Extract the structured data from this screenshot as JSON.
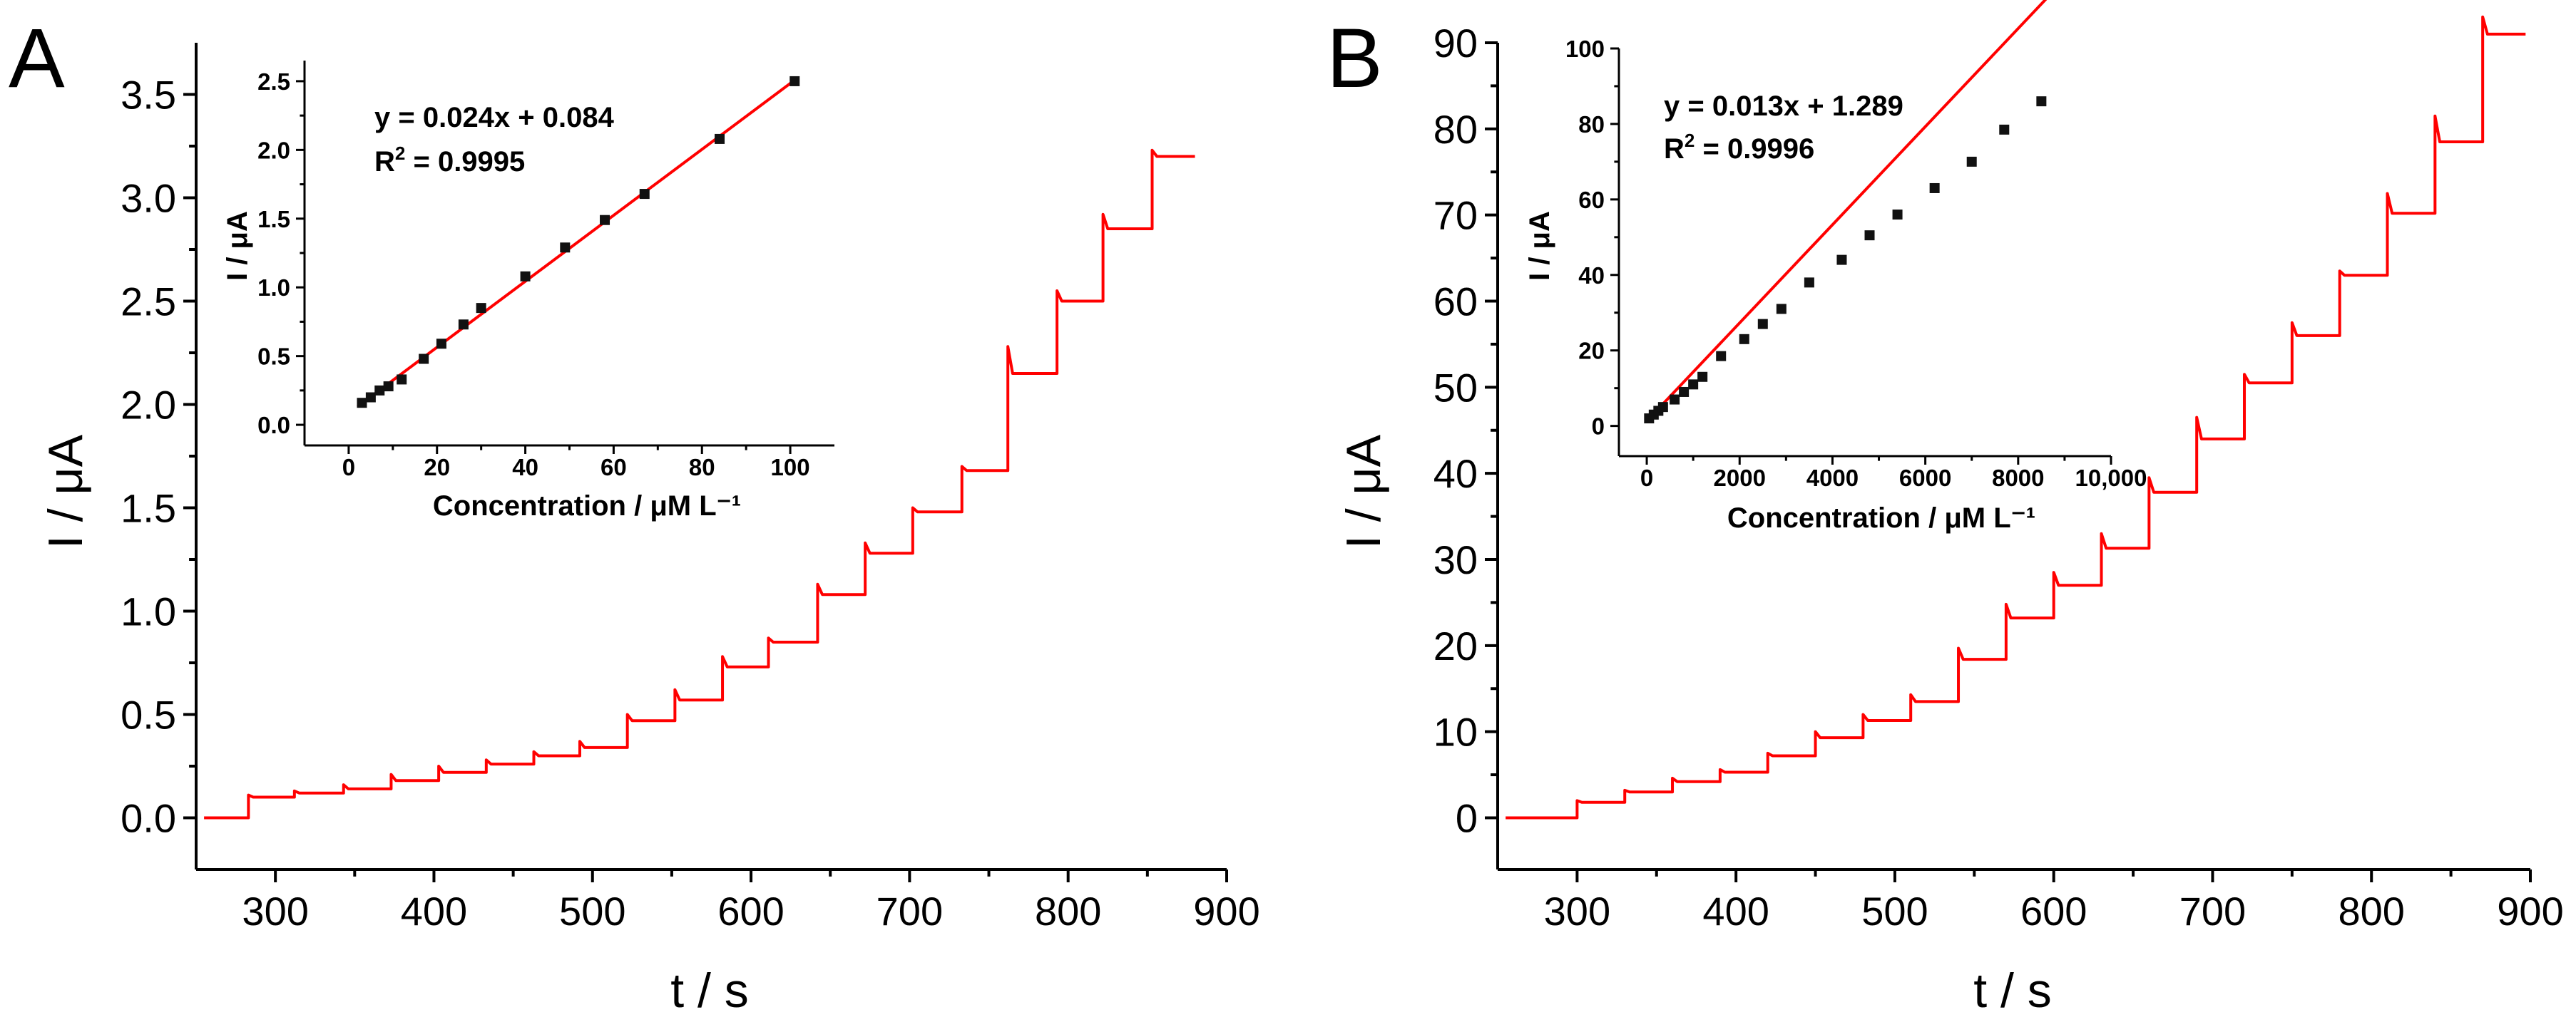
{
  "chart_data": [
    {
      "panel": "A",
      "type": "line",
      "xlabel": "t / s",
      "ylabel": "I / μA",
      "xlim": [
        250,
        900
      ],
      "ylim": [
        -0.25,
        3.75
      ],
      "xticks": [
        300,
        400,
        500,
        600,
        700,
        800,
        900
      ],
      "yticks": [
        0.0,
        0.5,
        1.0,
        1.5,
        2.0,
        2.5,
        3.0,
        3.5
      ],
      "ytick_decimals": 1,
      "color": "#ff0000",
      "steps": [
        {
          "t": 283,
          "level": 0.1,
          "spike": 0.11
        },
        {
          "t": 312,
          "level": 0.12,
          "spike": 0.13
        },
        {
          "t": 343,
          "level": 0.14,
          "spike": 0.16
        },
        {
          "t": 373,
          "level": 0.18,
          "spike": 0.21
        },
        {
          "t": 403,
          "level": 0.22,
          "spike": 0.25
        },
        {
          "t": 433,
          "level": 0.26,
          "spike": 0.28
        },
        {
          "t": 463,
          "level": 0.3,
          "spike": 0.32
        },
        {
          "t": 492,
          "level": 0.34,
          "spike": 0.37
        },
        {
          "t": 522,
          "level": 0.47,
          "spike": 0.5
        },
        {
          "t": 552,
          "level": 0.57,
          "spike": 0.62
        },
        {
          "t": 582,
          "level": 0.73,
          "spike": 0.78
        },
        {
          "t": 611,
          "level": 0.85,
          "spike": 0.87
        },
        {
          "t": 642,
          "level": 1.08,
          "spike": 1.13
        },
        {
          "t": 672,
          "level": 1.28,
          "spike": 1.33
        },
        {
          "t": 702,
          "level": 1.48,
          "spike": 1.5
        },
        {
          "t": 733,
          "level": 1.68,
          "spike": 1.7
        },
        {
          "t": 762,
          "level": 2.15,
          "spike": 2.28
        },
        {
          "t": 793,
          "level": 2.5,
          "spike": 2.55
        },
        {
          "t": 822,
          "level": 2.85,
          "spike": 2.92
        },
        {
          "t": 853,
          "level": 3.2,
          "spike": 3.23
        }
      ],
      "t_start": 255,
      "t_end": 880,
      "inset": {
        "type": "scatter",
        "xlabel": "Concentration / μM L⁻¹",
        "ylabel": "I / μA",
        "xlim": [
          -10,
          110
        ],
        "ylim": [
          -0.15,
          2.65
        ],
        "xticks": [
          0,
          20,
          40,
          60,
          80,
          100
        ],
        "yticks": [
          0.0,
          0.5,
          1.0,
          1.5,
          2.0,
          2.5
        ],
        "ytick_decimals": 1,
        "tick_labels_x": [
          "0",
          "20",
          "40",
          "60",
          "80",
          "100"
        ],
        "points": {
          "x": [
            3,
            5,
            7,
            9,
            12,
            17,
            21,
            26,
            30,
            40,
            49,
            58,
            67,
            84,
            101
          ],
          "y": [
            0.16,
            0.2,
            0.25,
            0.28,
            0.33,
            0.48,
            0.59,
            0.73,
            0.85,
            1.08,
            1.29,
            1.49,
            1.68,
            2.08,
            2.5
          ]
        },
        "fit": {
          "slope": 0.024,
          "intercept": 0.084,
          "x_range": [
            2,
            101
          ]
        },
        "equation": "y = 0.024x + 0.084",
        "r2_prefix": "R",
        "r2_sup": "2",
        "r2_value": " = 0.9995"
      }
    },
    {
      "panel": "B",
      "type": "line",
      "xlabel": "t / s",
      "ylabel": "I / μA",
      "xlim": [
        250,
        900
      ],
      "ylim": [
        -6,
        90
      ],
      "xticks": [
        300,
        400,
        500,
        600,
        700,
        800,
        900
      ],
      "yticks": [
        0,
        10,
        20,
        30,
        40,
        50,
        60,
        70,
        80,
        90
      ],
      "ytick_decimals": 0,
      "color": "#ff0000",
      "steps": [
        {
          "t": 300,
          "level": 1.8,
          "spike": 2.0
        },
        {
          "t": 330,
          "level": 3.0,
          "spike": 3.2
        },
        {
          "t": 360,
          "level": 4.2,
          "spike": 4.6
        },
        {
          "t": 390,
          "level": 5.3,
          "spike": 5.6
        },
        {
          "t": 420,
          "level": 7.2,
          "spike": 7.5
        },
        {
          "t": 450,
          "level": 9.3,
          "spike": 10.0
        },
        {
          "t": 480,
          "level": 11.3,
          "spike": 12.0
        },
        {
          "t": 510,
          "level": 13.5,
          "spike": 14.3
        },
        {
          "t": 540,
          "level": 18.4,
          "spike": 19.7
        },
        {
          "t": 570,
          "level": 23.2,
          "spike": 24.8
        },
        {
          "t": 600,
          "level": 27.0,
          "spike": 28.5
        },
        {
          "t": 630,
          "level": 31.3,
          "spike": 33.0
        },
        {
          "t": 660,
          "level": 37.8,
          "spike": 39.5
        },
        {
          "t": 690,
          "level": 44.0,
          "spike": 46.5
        },
        {
          "t": 720,
          "level": 50.5,
          "spike": 51.5
        },
        {
          "t": 750,
          "level": 56.0,
          "spike": 57.5
        },
        {
          "t": 780,
          "level": 63.0,
          "spike": 63.5
        },
        {
          "t": 810,
          "level": 70.2,
          "spike": 72.5
        },
        {
          "t": 840,
          "level": 78.5,
          "spike": 81.5
        },
        {
          "t": 870,
          "level": 91.0,
          "spike": 93.0
        }
      ],
      "t_start": 255,
      "t_end": 897,
      "inset": {
        "type": "scatter",
        "xlabel": "Concentration / μM L⁻¹",
        "ylabel": "I / μA",
        "xlim": [
          -600,
          10000
        ],
        "ylim": [
          -8,
          100
        ],
        "xticks": [
          0,
          2000,
          4000,
          6000,
          8000,
          10000
        ],
        "yticks": [
          0,
          20,
          40,
          60,
          80,
          100
        ],
        "ytick_decimals": 0,
        "tick_labels_x": [
          "0",
          "2000",
          "4000",
          "6000",
          "8000",
          "10,000"
        ],
        "points": {
          "x": [
            50,
            150,
            250,
            350,
            600,
            800,
            1000,
            1200,
            1600,
            2100,
            2500,
            2900,
            3500,
            4200,
            4800,
            5400,
            6200,
            7000,
            7700,
            8500
          ],
          "y": [
            2,
            3,
            4,
            5,
            7,
            9,
            11,
            13,
            18.5,
            23,
            27,
            31,
            38,
            44,
            50.5,
            56,
            63,
            70,
            78.5,
            86
          ]
        },
        "fit": {
          "slope": 0.013,
          "intercept": 1.289,
          "x_range": [
            0,
            8600
          ]
        },
        "equation": "y = 0.013x + 1.289",
        "r2_prefix": "R",
        "r2_sup": "2",
        "r2_value": " = 0.9996"
      }
    }
  ]
}
